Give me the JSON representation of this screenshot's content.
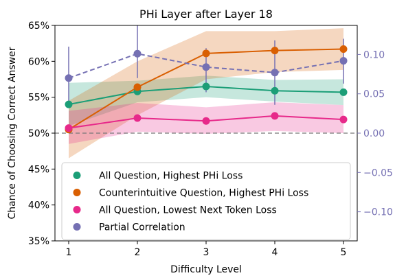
{
  "chart_data": {
    "type": "line",
    "title": "PHi Layer after Layer 18",
    "xlabel": "Difficulty Level",
    "ylabel": "Chance of Choosing Correct Answer",
    "x": [
      1,
      2,
      3,
      4,
      5
    ],
    "xlim": [
      0.8,
      5.2
    ],
    "ylim": [
      35,
      65
    ],
    "yticks": [
      "35%",
      "40%",
      "45%",
      "50%",
      "55%",
      "60%",
      "65%"
    ],
    "y_right": {
      "ylim": [
        -0.137,
        0.137
      ],
      "ticks": [
        -0.1,
        -0.05,
        0.0,
        0.05,
        0.1
      ],
      "tick_labels": [
        "−0.10",
        "−0.05",
        "0.00",
        "0.05",
        "0.10"
      ],
      "color": "#7570b3"
    },
    "reference_line": {
      "y": 50,
      "style": "dashed",
      "color": "#777777"
    },
    "series": [
      {
        "name": "All Question, Highest PHi Loss",
        "color": "#1b9e77",
        "axis": "left",
        "values": [
          54.0,
          55.8,
          56.5,
          55.9,
          55.7
        ],
        "band_low": [
          51.0,
          54.3,
          55.0,
          54.4,
          53.9
        ],
        "band_high": [
          57.0,
          57.3,
          58.0,
          57.4,
          57.5
        ]
      },
      {
        "name": "Counterintuitive Question, Highest PHi Loss",
        "color": "#d95f02",
        "axis": "left",
        "values": [
          50.5,
          56.4,
          61.1,
          61.5,
          61.7
        ],
        "band_low": [
          46.5,
          52.5,
          57.5,
          58.5,
          58.8
        ],
        "band_high": [
          54.5,
          60.0,
          64.2,
          64.2,
          64.6
        ]
      },
      {
        "name": "All Question, Lowest Next Token Loss",
        "color": "#e7298a",
        "axis": "left",
        "values": [
          50.7,
          52.1,
          51.7,
          52.4,
          51.9
        ],
        "band_low": [
          48.5,
          50.2,
          49.9,
          50.3,
          50.0
        ],
        "band_high": [
          53.1,
          54.2,
          53.6,
          54.3,
          53.9
        ]
      },
      {
        "name": "Partial Correlation",
        "color": "#7570b3",
        "axis": "right",
        "style": "dashed",
        "values": [
          0.07,
          0.101,
          0.084,
          0.077,
          0.092
        ],
        "err_low": [
          0.033,
          0.07,
          0.052,
          0.036,
          0.063
        ],
        "err_high": [
          0.11,
          0.137,
          0.108,
          0.118,
          0.12
        ]
      }
    ],
    "legend_position": "lower-left"
  }
}
